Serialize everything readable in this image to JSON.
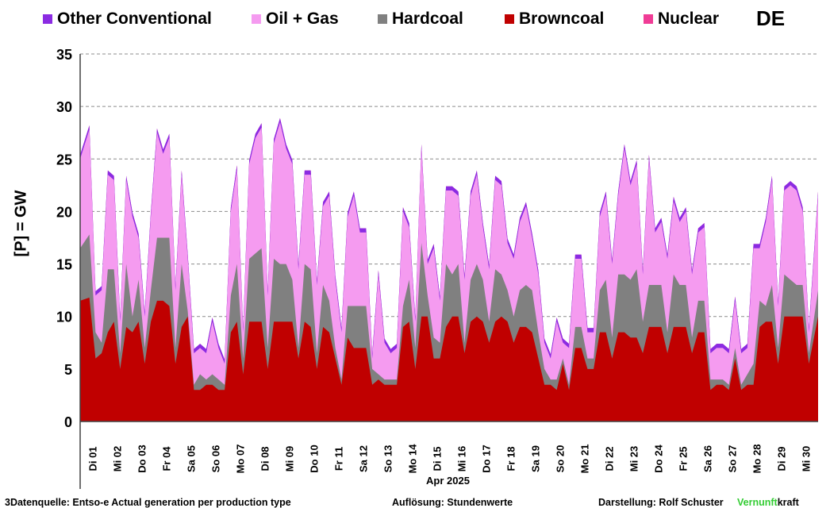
{
  "legend": [
    {
      "label": "Other Conventional",
      "color": "#8b2be2"
    },
    {
      "label": "Oil + Gas",
      "color": "#f59bf0"
    },
    {
      "label": "Hardcoal",
      "color": "#808080"
    },
    {
      "label": "Browncoal",
      "color": "#c00000"
    },
    {
      "label": "Nuclear",
      "color": "#f03c96"
    }
  ],
  "country": "DE",
  "footer": {
    "source": "3Datenquelle: Entso-e  Actual generation per production type",
    "resolution": "Auflösung: Stundenwerte",
    "author": "Darstellung:  Rolf Schuster",
    "brand_part1": "Vernunft",
    "brand_part2": "kraft"
  },
  "chart_data": {
    "type": "area",
    "ylabel": "[P] =  GW",
    "xlabel": "Apr 2025",
    "ylim": [
      0,
      35
    ],
    "yticks": [
      0,
      5,
      10,
      15,
      20,
      25,
      30,
      35
    ],
    "grid": "horizontal dashed",
    "stacked": true,
    "day_labels": [
      "Di 01",
      "Mi 02",
      "Do 03",
      "Fr 04",
      "Sa 05",
      "So 06",
      "Mo 07",
      "Di 08",
      "Mi 09",
      "Do 10",
      "Fr 11",
      "Sa 12",
      "So 13",
      "Mo 14",
      "Di 15",
      "Mi 16",
      "Do 17",
      "Fr 18",
      "Sa 19",
      "So 20",
      "Mo 21",
      "Di 22",
      "Mi 23",
      "Do 24",
      "Fr 25",
      "Sa 26",
      "So 27",
      "Mo 28",
      "Di 29",
      "Mi 30"
    ],
    "x_resolution": "6-hourly samples per day (00, 06, 12, 18 h)",
    "series": [
      {
        "name": "Browncoal",
        "color": "#c00000",
        "values": [
          11.5,
          11.8,
          6.0,
          6.5,
          8.5,
          9.5,
          5.0,
          9.0,
          8.5,
          9.5,
          5.5,
          9.5,
          11.5,
          11.5,
          11.0,
          5.5,
          9.0,
          10.0,
          3.0,
          3.0,
          3.5,
          3.5,
          3.0,
          3.0,
          8.5,
          9.5,
          4.5,
          9.5,
          9.5,
          9.5,
          5.0,
          9.5,
          9.5,
          9.5,
          9.5,
          6.0,
          9.5,
          9.0,
          5.0,
          9.0,
          8.5,
          6.0,
          3.5,
          8.0,
          7.0,
          7.0,
          7.0,
          3.5,
          4.0,
          3.5,
          3.5,
          3.5,
          9.0,
          9.5,
          5.0,
          10.0,
          10.0,
          6.0,
          6.0,
          9.0,
          10.0,
          10.0,
          6.5,
          9.5,
          10.0,
          9.5,
          7.5,
          9.5,
          10.0,
          9.5,
          7.5,
          9.0,
          9.0,
          8.5,
          6.0,
          3.5,
          3.5,
          3.0,
          5.5,
          3.0,
          7.0,
          7.0,
          5.0,
          5.0,
          8.5,
          8.5,
          6.0,
          8.5,
          8.5,
          8.0,
          8.0,
          6.5,
          9.0,
          9.0,
          9.0,
          6.5,
          9.0,
          9.0,
          9.0,
          6.5,
          8.5,
          8.5,
          3.0,
          3.5,
          3.5,
          3.0,
          6.0,
          3.0,
          3.5,
          3.5,
          9.0,
          9.5,
          9.5,
          5.5,
          10.0,
          10.0,
          10.0,
          10.0,
          5.5,
          10.0
        ]
      },
      {
        "name": "Hardcoal",
        "color": "#808080",
        "values": [
          5.0,
          6.0,
          2.5,
          1.0,
          6.0,
          5.0,
          1.5,
          6.0,
          1.5,
          4.0,
          1.5,
          3.0,
          6.0,
          6.0,
          6.5,
          1.5,
          6.0,
          0.5,
          0.5,
          1.5,
          0.5,
          1.0,
          1.0,
          0.5,
          3.5,
          5.5,
          1.5,
          6.0,
          6.5,
          7.0,
          2.0,
          6.0,
          5.5,
          5.5,
          4.0,
          1.0,
          5.5,
          5.5,
          1.5,
          4.0,
          3.0,
          1.0,
          0.5,
          3.0,
          4.0,
          4.0,
          4.0,
          1.5,
          0.5,
          0.5,
          0.5,
          0.5,
          2.0,
          4.0,
          2.0,
          7.0,
          2.0,
          2.0,
          1.5,
          6.0,
          4.0,
          5.0,
          1.0,
          4.0,
          5.0,
          4.0,
          2.0,
          5.0,
          4.0,
          3.0,
          2.5,
          3.5,
          4.0,
          4.0,
          2.5,
          1.5,
          0.5,
          1.0,
          0.5,
          0.5,
          2.0,
          2.0,
          1.0,
          1.0,
          4.0,
          5.0,
          2.0,
          5.5,
          5.5,
          5.5,
          6.5,
          3.0,
          4.0,
          4.0,
          4.0,
          2.0,
          5.0,
          4.0,
          4.0,
          1.5,
          3.0,
          3.0,
          1.0,
          0.5,
          0.5,
          0.5,
          1.0,
          0.5,
          1.0,
          2.0,
          2.5,
          1.5,
          3.5,
          1.5,
          4.0,
          3.5,
          3.0,
          3.0,
          1.0,
          2.5
        ]
      },
      {
        "name": "Oil + Gas",
        "color": "#f59bf0",
        "values": [
          8.5,
          10.0,
          3.5,
          5.0,
          9.0,
          8.5,
          3.0,
          8.0,
          9.5,
          4.0,
          3.0,
          7.0,
          10.0,
          8.0,
          9.5,
          5.5,
          8.5,
          5.0,
          3.0,
          2.5,
          2.5,
          5.0,
          3.0,
          2.0,
          8.0,
          9.0,
          2.5,
          9.0,
          11.0,
          11.5,
          5.0,
          11.0,
          13.5,
          11.0,
          11.0,
          7.5,
          8.5,
          9.0,
          6.5,
          7.5,
          10.0,
          6.5,
          4.5,
          8.5,
          10.5,
          7.0,
          7.0,
          1.0,
          9.5,
          3.5,
          2.5,
          3.0,
          9.0,
          5.0,
          2.5,
          9.0,
          3.0,
          8.5,
          4.0,
          7.0,
          8.0,
          6.5,
          6.0,
          8.0,
          8.5,
          5.0,
          5.0,
          8.5,
          8.5,
          4.5,
          5.5,
          6.5,
          7.5,
          5.0,
          5.5,
          2.5,
          2.0,
          5.5,
          1.5,
          3.5,
          6.5,
          6.5,
          2.5,
          2.5,
          7.0,
          8.0,
          7.0,
          7.5,
          12.0,
          9.0,
          10.0,
          4.5,
          12.0,
          5.0,
          6.0,
          7.0,
          7.0,
          6.0,
          7.0,
          6.0,
          6.5,
          7.0,
          2.5,
          3.0,
          3.0,
          3.0,
          4.5,
          3.0,
          2.5,
          11.0,
          5.0,
          8.0,
          10.0,
          4.0,
          8.0,
          9.0,
          9.0,
          7.0,
          2.0,
          9.0
        ]
      },
      {
        "name": "Other Conventional",
        "color": "#8b2be2",
        "values": [
          0.4,
          0.4,
          0.4,
          0.4,
          0.4,
          0.4,
          0.4,
          0.4,
          0.4,
          0.4,
          0.4,
          0.4,
          0.4,
          0.4,
          0.4,
          0.4,
          0.4,
          0.4,
          0.4,
          0.4,
          0.4,
          0.4,
          0.4,
          0.4,
          0.4,
          0.4,
          0.4,
          0.4,
          0.4,
          0.4,
          0.4,
          0.4,
          0.4,
          0.4,
          0.4,
          0.4,
          0.4,
          0.4,
          0.4,
          0.4,
          0.4,
          0.4,
          0.4,
          0.4,
          0.4,
          0.4,
          0.4,
          0.4,
          0.4,
          0.4,
          0.4,
          0.4,
          0.4,
          0.4,
          0.4,
          0.4,
          0.4,
          0.4,
          0.4,
          0.4,
          0.4,
          0.4,
          0.4,
          0.4,
          0.4,
          0.4,
          0.4,
          0.4,
          0.4,
          0.4,
          0.4,
          0.4,
          0.4,
          0.4,
          0.4,
          0.4,
          0.4,
          0.4,
          0.4,
          0.4,
          0.4,
          0.4,
          0.4,
          0.4,
          0.4,
          0.4,
          0.4,
          0.4,
          0.4,
          0.4,
          0.4,
          0.4,
          0.4,
          0.4,
          0.4,
          0.4,
          0.4,
          0.4,
          0.4,
          0.4,
          0.4,
          0.4,
          0.4,
          0.4,
          0.4,
          0.4,
          0.4,
          0.4,
          0.4,
          0.4,
          0.4,
          0.4,
          0.4,
          0.4,
          0.4,
          0.4,
          0.4,
          0.4,
          0.4,
          0.4
        ]
      },
      {
        "name": "Nuclear",
        "color": "#f03c96",
        "values": [
          0,
          0,
          0,
          0,
          0,
          0,
          0,
          0,
          0,
          0,
          0,
          0,
          0,
          0,
          0,
          0,
          0,
          0,
          0,
          0,
          0,
          0,
          0,
          0,
          0,
          0,
          0,
          0,
          0,
          0,
          0,
          0,
          0,
          0,
          0,
          0,
          0,
          0,
          0,
          0,
          0,
          0,
          0,
          0,
          0,
          0,
          0,
          0,
          0,
          0,
          0,
          0,
          0,
          0,
          0,
          0,
          0,
          0,
          0,
          0,
          0,
          0,
          0,
          0,
          0,
          0,
          0,
          0,
          0,
          0,
          0,
          0,
          0,
          0,
          0,
          0,
          0,
          0,
          0,
          0,
          0,
          0,
          0,
          0,
          0,
          0,
          0,
          0,
          0,
          0,
          0,
          0,
          0,
          0,
          0,
          0,
          0,
          0,
          0,
          0,
          0,
          0,
          0,
          0,
          0,
          0,
          0,
          0,
          0,
          0,
          0,
          0,
          0,
          0,
          0,
          0,
          0,
          0,
          0,
          0
        ]
      }
    ]
  }
}
